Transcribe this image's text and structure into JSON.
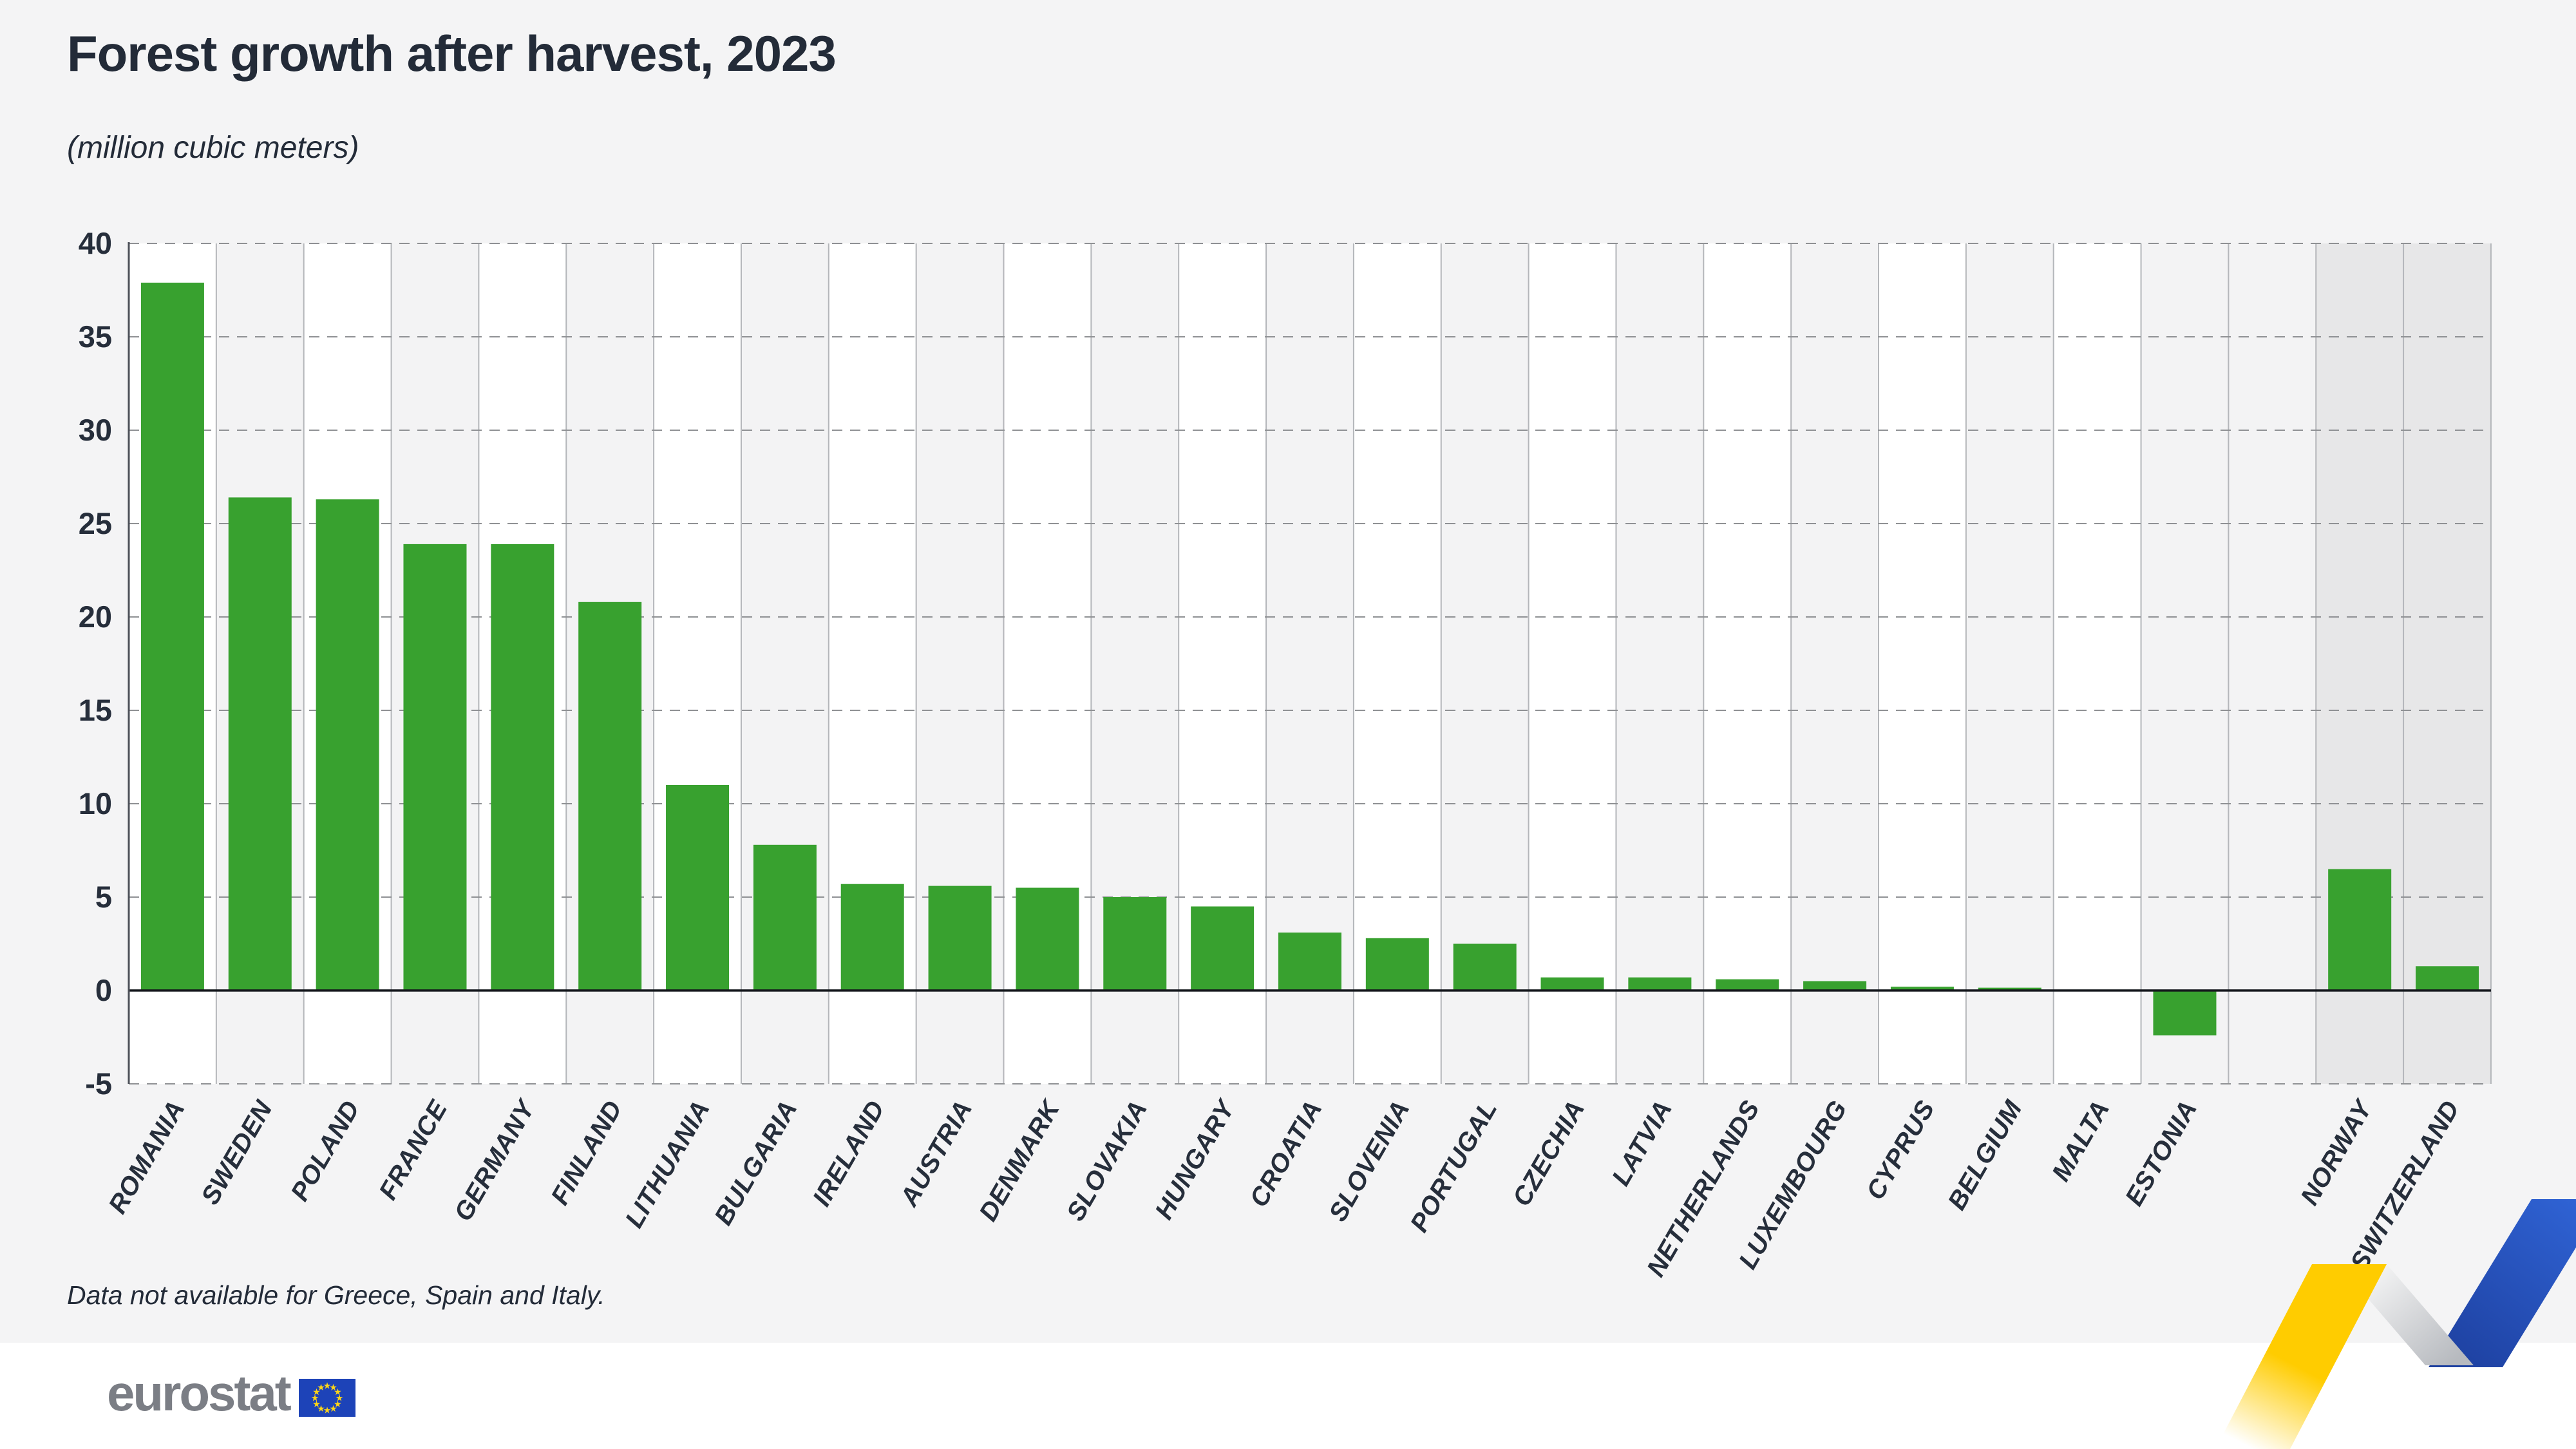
{
  "header": {
    "title": "Forest growth after harvest, 2023",
    "subtitle": "(million cubic meters)"
  },
  "footnote": "Data not available for Greece, Spain and Italy.",
  "logo": {
    "text": "eurostat",
    "text_color": "#7b7e85",
    "flag_blue": "#1d43b8",
    "star_yellow": "#ffd617"
  },
  "decoration": {
    "yellow": "#ffcc00",
    "silver_light": "#fafafa",
    "silver_dark": "#b7babf",
    "blue_dark": "#1d3f9e",
    "blue_bright": "#2f62d3"
  },
  "chart_data": {
    "type": "bar",
    "title": "Forest growth after harvest, 2023",
    "unit_label": "(million cubic meters)",
    "xlabel": "",
    "ylabel": "",
    "ylim": [
      -5,
      40
    ],
    "yticks": [
      40,
      35,
      30,
      25,
      20,
      15,
      10,
      5,
      0,
      -5
    ],
    "grid": "dashed-horizontal",
    "legend": "none",
    "bar_color": "#38a12f",
    "axis_text_color": "#262e3b",
    "column_fill_white": "#ffffff",
    "column_fill_alt": "#f3f3f4",
    "column_fill_non_eu": "#e7e7e8",
    "separator_line_color": "#b4b6ba",
    "gridline_color": "#8f9194",
    "zero_line_color": "#15181d",
    "axis_line_color": "#4c5058",
    "categories": [
      "ROMANIA",
      "SWEDEN",
      "POLAND",
      "FRANCE",
      "GERMANY",
      "FINLAND",
      "LITHUANIA",
      "BULGARIA",
      "IRELAND",
      "AUSTRIA",
      "DENMARK",
      "SLOVAKIA",
      "HUNGARY",
      "CROATIA",
      "SLOVENIA",
      "PORTUGAL",
      "CZECHIA",
      "LATVIA",
      "NETHERLANDS",
      "LUXEMBOURG",
      "CYPRUS",
      "BELGIUM",
      "MALTA",
      "ESTONIA",
      "NORWAY",
      "SWITZERLAND"
    ],
    "values": [
      37.9,
      26.4,
      26.3,
      23.9,
      23.9,
      20.8,
      11.0,
      7.8,
      5.7,
      5.6,
      5.5,
      5.0,
      4.5,
      3.1,
      2.8,
      2.5,
      0.7,
      0.7,
      0.6,
      0.5,
      0.2,
      0.15,
      0,
      -2.4,
      6.5,
      1.3
    ],
    "gap_column_before": "NORWAY",
    "non_eu_countries": [
      "NORWAY",
      "SWITZERLAND"
    ]
  }
}
